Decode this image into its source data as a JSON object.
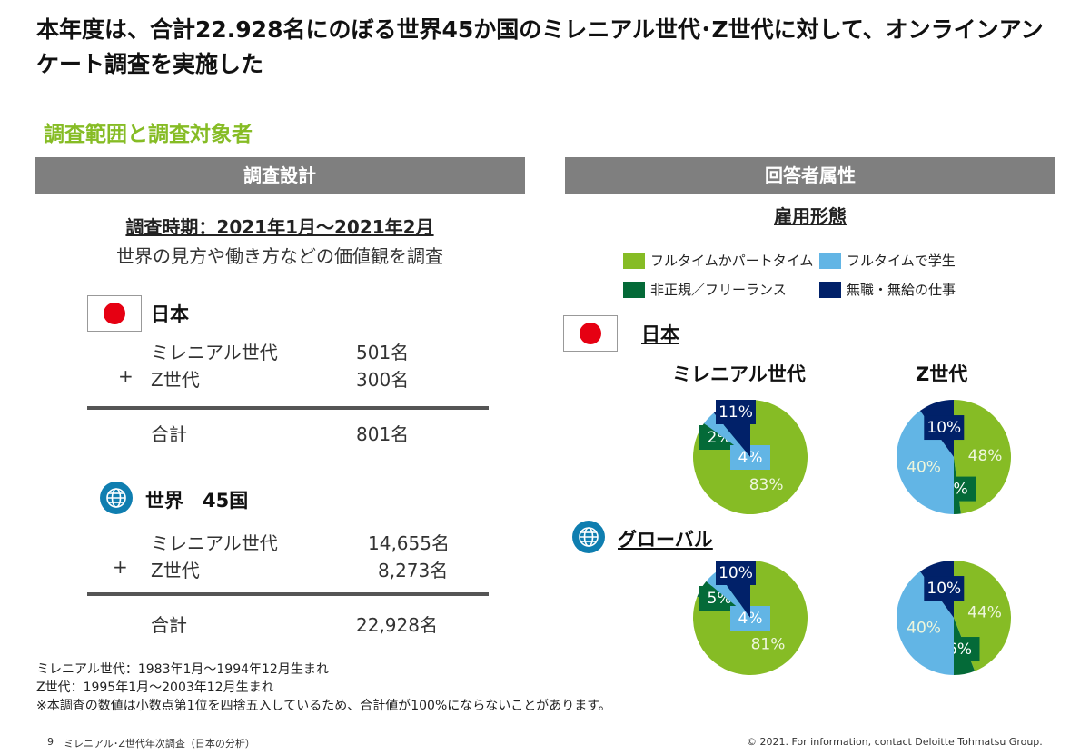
{
  "title": "本年度は、合計22.928名にのぼる世界45か国のミレニアル世代･Z世代に対して、オンラインアンケート調査を実施した",
  "subtitle": "調査範囲と調査対象者",
  "left": {
    "header": "調査設計",
    "period": "調査時期：2021年1月～2021年2月",
    "desc": "世界の見方や働き方などの価値観を調査",
    "japan": {
      "label": "日本",
      "rows": [
        {
          "prefix": "",
          "name": "ミレニアル世代",
          "value": "501名"
        },
        {
          "prefix": "+",
          "name": "Z世代",
          "value": "300名"
        }
      ],
      "total_label": "合計",
      "total": "801名"
    },
    "world": {
      "label": "世界　45国",
      "rows": [
        {
          "prefix": "",
          "name": "ミレニアル世代",
          "value": "14,655名"
        },
        {
          "prefix": "+",
          "name": "Z世代",
          "value": "8,273名"
        }
      ],
      "total_label": "合計",
      "total": "22,928名"
    }
  },
  "right": {
    "header": "回答者属性",
    "section": "雇用形態",
    "legend": [
      {
        "label": "フルタイムかパートタイム",
        "color": "#86bc25"
      },
      {
        "label": "フルタイムで学生",
        "color": "#62b5e5"
      },
      {
        "label": "非正規／フリーランス",
        "color": "#046a38"
      },
      {
        "label": "無職・無給の仕事",
        "color": "#012169"
      }
    ],
    "japan_label": "日本",
    "global_label": "グローバル",
    "col_labels": [
      "ミレニアル世代",
      "Z世代"
    ]
  },
  "chart_data": [
    {
      "type": "pie",
      "group": "日本",
      "title": "ミレニアル世代",
      "slices": [
        {
          "label": "フルタイムかパートタイム",
          "value": 83
        },
        {
          "label": "非正規／フリーランス",
          "value": 2
        },
        {
          "label": "フルタイムで学生",
          "value": 4
        },
        {
          "label": "無職・無給の仕事",
          "value": 11
        }
      ]
    },
    {
      "type": "pie",
      "group": "日本",
      "title": "Z世代",
      "slices": [
        {
          "label": "フルタイムかパートタイム",
          "value": 48
        },
        {
          "label": "非正規／フリーランス",
          "value": 2
        },
        {
          "label": "フルタイムで学生",
          "value": 40
        },
        {
          "label": "無職・無給の仕事",
          "value": 10
        }
      ]
    },
    {
      "type": "pie",
      "group": "グローバル",
      "title": "ミレニアル世代",
      "slices": [
        {
          "label": "フルタイムかパートタイム",
          "value": 81
        },
        {
          "label": "非正規／フリーランス",
          "value": 5
        },
        {
          "label": "フルタイムで学生",
          "value": 4
        },
        {
          "label": "無職・無給の仕事",
          "value": 10
        }
      ]
    },
    {
      "type": "pie",
      "group": "グローバル",
      "title": "Z世代",
      "slices": [
        {
          "label": "フルタイムかパートタイム",
          "value": 44
        },
        {
          "label": "非正規／フリーランス",
          "value": 6
        },
        {
          "label": "フルタイムで学生",
          "value": 40
        },
        {
          "label": "無職・無給の仕事",
          "value": 10
        }
      ]
    }
  ],
  "notes": [
    "ミレニアル世代：1983年1月～1994年12月生まれ",
    "Z世代：1995年1月～2003年12月生まれ",
    "※本調査の数値は小数点第1位を四捨五入しているため、合計値が100%にならないことがあります。"
  ],
  "footer": {
    "page": "9",
    "doc": "ミレニアル･Z世代年次調査（日本の分析）",
    "copyright": "© 2021. For information, contact Deloitte Tohmatsu Group."
  }
}
